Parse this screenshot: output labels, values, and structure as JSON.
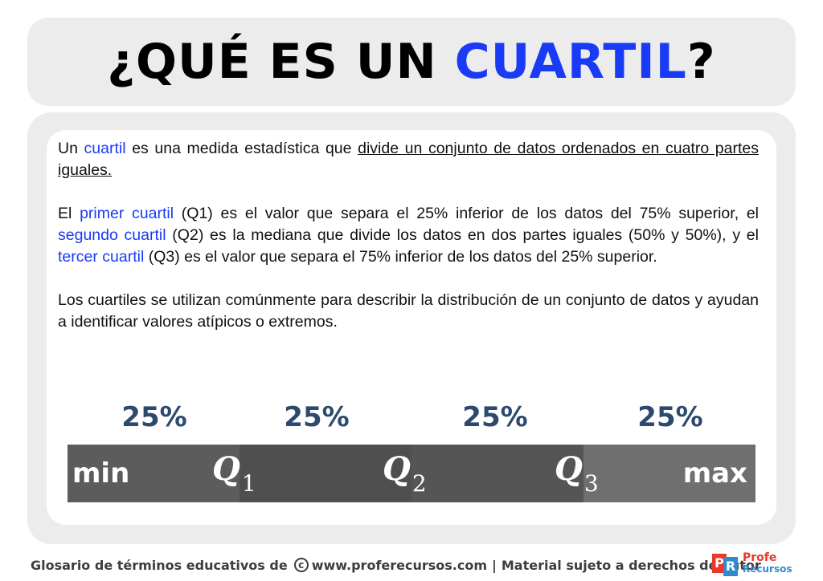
{
  "title": {
    "part1": "¿QUÉ ES UN ",
    "accent": "CUARTIL",
    "part2": "?"
  },
  "paragraphs": {
    "p1": {
      "a": "Un ",
      "term": "cuartil",
      "b": " es una medida estadística que ",
      "underlined": "divide un conjunto de datos ordenados en cuatro partes iguales."
    },
    "p2": {
      "a": "El ",
      "term1": "primer cuartil",
      "b": " (Q1) es el valor que separa el 25% inferior de los datos del 75% superior, el ",
      "term2": "segundo cuartil",
      "c": " (Q2) es la mediana que divide los datos en dos partes iguales (50% y 50%), y el ",
      "term3": "tercer cuartil",
      "d": " (Q3) es el valor que separa el 75% inferior de los datos del 25% superior."
    },
    "p3": "Los cuartiles se utilizan comúnmente para describir la distribución de un conjunto de datos y ayudan a identificar valores atípicos o extremos."
  },
  "graphic": {
    "percent_labels": [
      "25%",
      "25%",
      "25%",
      "25%"
    ],
    "min_label": "min",
    "max_label": "max",
    "q_letter": "Q",
    "q_subscripts": [
      "1",
      "2",
      "3"
    ]
  },
  "footer": {
    "left": "Glosario de términos educativos de",
    "copyright_symbol": "c",
    "site": "www.proferecursos.com",
    "separator": "|",
    "right": "Material sujeto a derechos de autor"
  },
  "logo": {
    "mark1": "P",
    "mark2": "R",
    "line1": "Profe",
    "line2": "Recursos"
  },
  "colors": {
    "accent_blue": "#1a3bf5",
    "percent_color": "#2d4a6e",
    "logo_red": "#e8392b",
    "logo_blue": "#2f8bd0"
  }
}
